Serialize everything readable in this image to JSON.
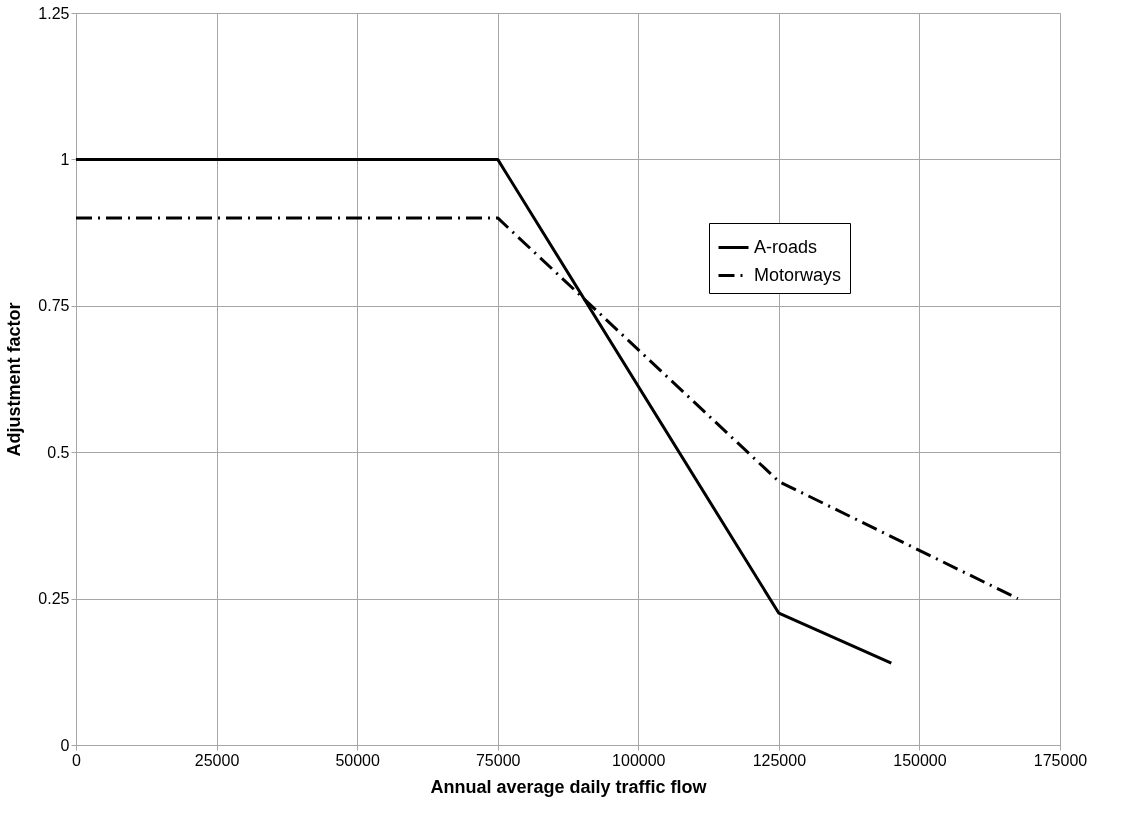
{
  "chart_data": {
    "type": "line",
    "xlabel": "Annual average daily traffic flow",
    "ylabel": "Adjustment factor",
    "xlim": [
      0,
      175000
    ],
    "xticks": [
      0,
      25000,
      50000,
      75000,
      100000,
      125000,
      150000,
      175000
    ],
    "ylim": [
      0,
      1.25
    ],
    "yticks": [
      0,
      0.25,
      0.5,
      0.75,
      1,
      1.25
    ],
    "grid": true,
    "legend": "top right",
    "marker": "none",
    "series": [
      {
        "name": "A-roads",
        "color": "#000000",
        "line_style": "solid",
        "x": [
          0,
          75000,
          125000,
          145000
        ],
        "values": [
          1,
          1,
          0.225,
          0.14
        ]
      },
      {
        "name": "Motorways",
        "color": "#000000",
        "line_style": "dashdot",
        "x": [
          0,
          75000,
          125000,
          167500
        ],
        "values": [
          0.9,
          0.9,
          0.45,
          0.25
        ]
      }
    ]
  }
}
